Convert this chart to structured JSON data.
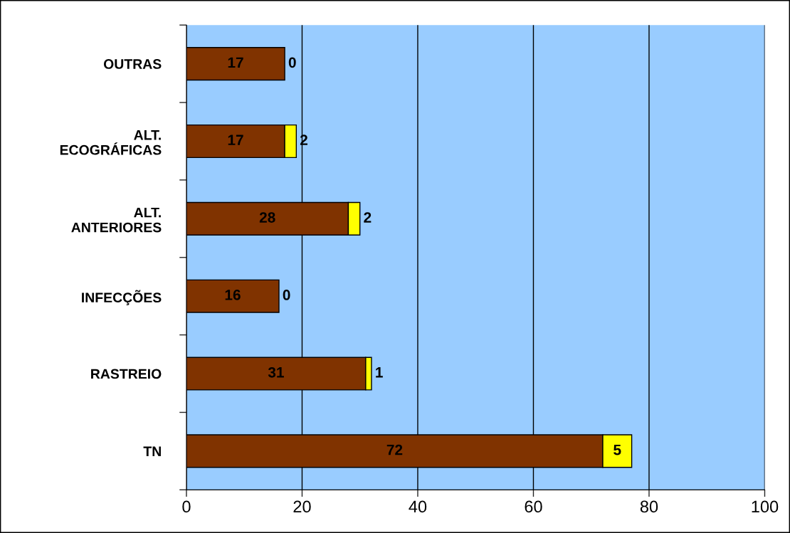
{
  "chart_data": {
    "type": "bar",
    "orientation": "horizontal",
    "stacked": true,
    "categories": [
      "OUTRAS",
      "ALT.\nECOGRÁFICAS",
      "ALT.\nANTERIORES",
      "INFECÇÕES",
      "RASTREIO",
      "TN"
    ],
    "series": [
      {
        "color": "#803300",
        "values": [
          17,
          17,
          28,
          16,
          31,
          72
        ]
      },
      {
        "color": "#ffff00",
        "values": [
          0,
          2,
          2,
          0,
          1,
          5
        ]
      }
    ],
    "xlim": [
      0,
      100
    ],
    "xticks": [
      0,
      20,
      40,
      60,
      80,
      100
    ],
    "grid": "x",
    "data_labels": true,
    "legend": false
  }
}
